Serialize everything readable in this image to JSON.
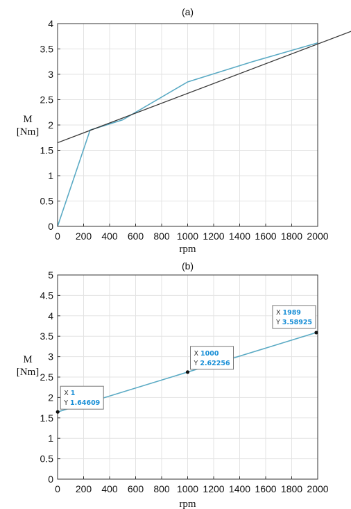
{
  "chart_data": [
    {
      "type": "line",
      "title": "(a)",
      "xlabel": "rpm",
      "ylabel": [
        "M",
        "[Nm]"
      ],
      "xlim": [
        0,
        2000
      ],
      "ylim": [
        0,
        4
      ],
      "xticks": [
        "0",
        "200",
        "400",
        "600",
        "800",
        "1000",
        "1200",
        "1400",
        "1600",
        "1800",
        "2000"
      ],
      "yticks": [
        "0",
        "0.5",
        "1",
        "1.5",
        "2",
        "2.5",
        "3",
        "3.5",
        "4"
      ],
      "grid": true,
      "series": [
        {
          "color": "#5aaac4",
          "x": [
            0,
            250,
            500,
            1000,
            1500,
            2000
          ],
          "y": [
            0,
            1.9,
            2.1,
            2.85,
            3.25,
            3.62
          ]
        },
        {
          "color": "#3a3a3a",
          "x": [
            0,
            2260
          ],
          "y": [
            1.65,
            3.85
          ],
          "clip": true
        }
      ]
    },
    {
      "type": "line",
      "title": "(b)",
      "xlabel": "rpm",
      "ylabel": [
        "M",
        "[Nm]"
      ],
      "xlim": [
        0,
        2000
      ],
      "ylim": [
        0,
        5
      ],
      "xticks": [
        "0",
        "200",
        "400",
        "600",
        "800",
        "1000",
        "1200",
        "1400",
        "1600",
        "1800",
        "2000"
      ],
      "yticks": [
        "0",
        "0.5",
        "1",
        "1.5",
        "2",
        "2.5",
        "3",
        "3.5",
        "4",
        "4.5",
        "5"
      ],
      "grid": true,
      "series": [
        {
          "color": "#5aaac4",
          "x": [
            1,
            2000
          ],
          "y": [
            1.64609,
            3.6
          ]
        }
      ],
      "datatips": [
        {
          "x": 1,
          "y": 1.64609,
          "x_text": "1",
          "y_text": "1.64609",
          "anchor": "above-right"
        },
        {
          "x": 1000,
          "y": 2.62256,
          "x_text": "1000",
          "y_text": "2.62256",
          "anchor": "above-right"
        },
        {
          "x": 1989,
          "y": 3.58925,
          "x_text": "1989",
          "y_text": "3.58925",
          "anchor": "above-left"
        }
      ]
    }
  ]
}
